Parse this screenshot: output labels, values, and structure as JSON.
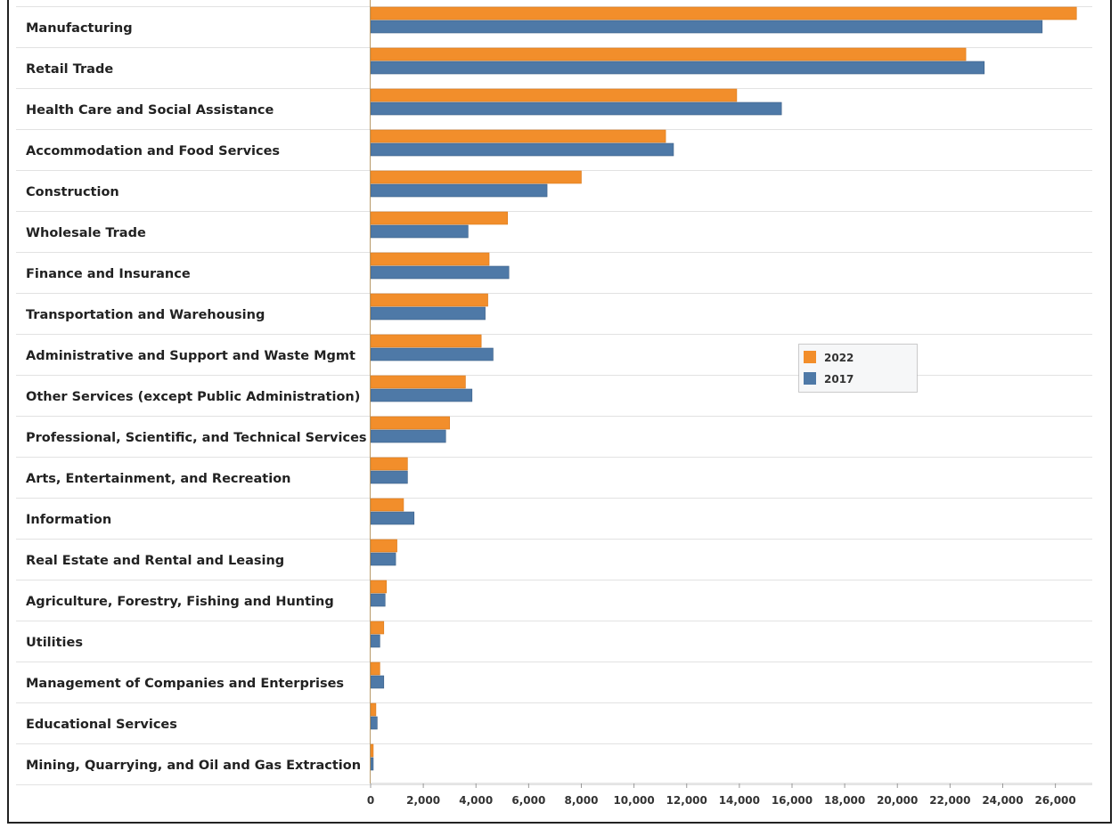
{
  "chart_data": {
    "type": "bar",
    "orientation": "horizontal",
    "categories": [
      "Manufacturing",
      "Retail Trade",
      "Health Care and Social Assistance",
      "Accommodation and Food Services",
      "Construction",
      "Wholesale Trade",
      "Finance and Insurance",
      "Transportation and Warehousing",
      "Administrative and Support and Waste Mgmt",
      "Other Services (except Public Administration)",
      "Professional, Scientific, and Technical Services",
      "Arts, Entertainment, and Recreation",
      "Information",
      "Real Estate and Rental and Leasing",
      "Agriculture, Forestry, Fishing and Hunting",
      "Utilities",
      "Management of Companies and Enterprises",
      "Educational Services",
      "Mining, Quarrying, and Oil and Gas Extraction"
    ],
    "series": [
      {
        "name": "2022",
        "color": "#F28E2B",
        "values": [
          26800,
          22600,
          13900,
          11200,
          8000,
          5200,
          4500,
          4450,
          4200,
          3600,
          3000,
          1400,
          1250,
          1000,
          600,
          500,
          350,
          200,
          100
        ]
      },
      {
        "name": "2017",
        "color": "#4E79A7",
        "values": [
          25500,
          23300,
          15600,
          11500,
          6700,
          3700,
          5250,
          4350,
          4650,
          3850,
          2850,
          1400,
          1650,
          950,
          550,
          350,
          500,
          250,
          100
        ]
      }
    ],
    "xlim": [
      0,
      27400
    ],
    "xticks": [
      0,
      2000,
      4000,
      6000,
      8000,
      10000,
      12000,
      14000,
      16000,
      18000,
      20000,
      22000,
      24000,
      26000
    ],
    "xtick_labels": [
      "0",
      "2,000",
      "4,000",
      "6,000",
      "8,000",
      "10,000",
      "12,000",
      "14,000",
      "16,000",
      "18,000",
      "20,000",
      "22,000",
      "24,000",
      "26,000"
    ],
    "title": "",
    "xlabel": "",
    "ylabel": "",
    "grid": "horizontal row separators",
    "legend": "center-right"
  }
}
